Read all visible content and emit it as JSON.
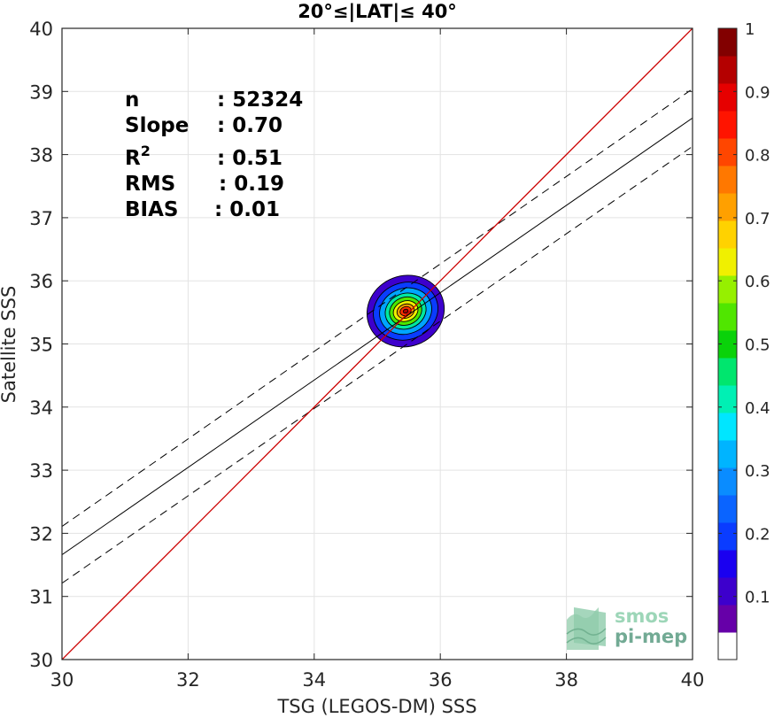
{
  "chart_data": {
    "type": "heatmap",
    "title": "20°≤|LAT|≤ 40°",
    "xlabel": "TSG (LEGOS-DM) SSS",
    "ylabel": "Satellite SSS",
    "xlim": [
      30,
      40
    ],
    "ylim": [
      30,
      40
    ],
    "xticks": [
      "30",
      "32",
      "34",
      "36",
      "38",
      "40"
    ],
    "yticks": [
      "30",
      "31",
      "32",
      "33",
      "34",
      "35",
      "36",
      "37",
      "38",
      "39",
      "40"
    ],
    "grid": true,
    "stats": [
      {
        "label": "n",
        "value": ": 52324"
      },
      {
        "label": "Slope",
        "value": ": 0.70"
      },
      {
        "label": "R",
        "superscript": "2",
        "value": ": 0.51"
      },
      {
        "label": "RMS",
        "value": ": 0.19"
      },
      {
        "label": "BIAS",
        "value": ": 0.01"
      }
    ],
    "identity_line": {
      "x": [
        30,
        40
      ],
      "y": [
        30,
        40
      ],
      "color": "#cc0000"
    },
    "fit_line": {
      "x": [
        30,
        40
      ],
      "y": [
        31.66,
        38.58
      ]
    },
    "fit_band_upper": {
      "x": [
        30,
        40
      ],
      "y": [
        32.11,
        39.04
      ]
    },
    "fit_band_lower": {
      "x": [
        30,
        40
      ],
      "y": [
        31.21,
        38.13
      ]
    },
    "density_peak": {
      "x": 35.45,
      "y": 35.52
    },
    "density_contours": [
      {
        "level": 0.05,
        "color": "#3d00cc",
        "rx": 0.62,
        "ry": 0.56
      },
      {
        "level": 0.15,
        "color": "#0a3cff",
        "rx": 0.52,
        "ry": 0.45
      },
      {
        "level": 0.3,
        "color": "#00a5ff",
        "rx": 0.42,
        "ry": 0.36
      },
      {
        "level": 0.45,
        "color": "#00e8a0",
        "rx": 0.33,
        "ry": 0.28
      },
      {
        "level": 0.55,
        "color": "#4ce600",
        "rx": 0.26,
        "ry": 0.22
      },
      {
        "level": 0.65,
        "color": "#f0f000",
        "rx": 0.2,
        "ry": 0.16
      },
      {
        "level": 0.75,
        "color": "#ffa000",
        "rx": 0.14,
        "ry": 0.11
      },
      {
        "level": 0.85,
        "color": "#ff3000",
        "rx": 0.09,
        "ry": 0.07
      },
      {
        "level": 0.95,
        "color": "#b00000",
        "rx": 0.04,
        "ry": 0.03
      }
    ],
    "colorbar": {
      "range": [
        0,
        1
      ],
      "ticks": [
        "0.1",
        "0.2",
        "0.3",
        "0.4",
        "0.5",
        "0.6",
        "0.7",
        "0.8",
        "0.9",
        "1"
      ],
      "colors": [
        "#ffffff",
        "#6600a8",
        "#3d00cc",
        "#1a00f0",
        "#0a3cff",
        "#0a64ff",
        "#0a8cff",
        "#00b4ff",
        "#00e6ff",
        "#00f0b4",
        "#00e66e",
        "#0ad20a",
        "#50e600",
        "#96f000",
        "#f0f000",
        "#ffd200",
        "#ffa000",
        "#ff7800",
        "#ff4600",
        "#ff1400",
        "#e60000",
        "#b40000",
        "#820000"
      ]
    }
  },
  "logo": {
    "line1": "smos",
    "line2": "pi-mep"
  }
}
